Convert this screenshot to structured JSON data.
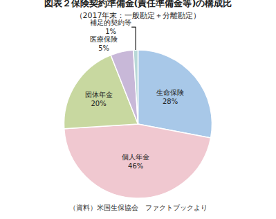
{
  "chart_data": {
    "type": "pie",
    "title": "図表２保険契約準備金(責任準備金等)の構成比",
    "subtitle": "（2017年末：一般勘定＋分離勘定）",
    "categories": [
      "生命保険",
      "個人年金",
      "団体年金",
      "医療保険",
      "補足的契約等"
    ],
    "values": [
      28,
      46,
      20,
      5,
      1
    ],
    "value_labels": [
      "28%",
      "46%",
      "20%",
      "5%",
      "1%"
    ],
    "data_labels": true,
    "colors": [
      "#a8c8e8",
      "#f0c8d0",
      "#c8d8a0",
      "#c8b8d8",
      "#b8d8d8"
    ],
    "annotations": [
      "（資料）米国生保協会　ファクトブックより"
    ]
  }
}
